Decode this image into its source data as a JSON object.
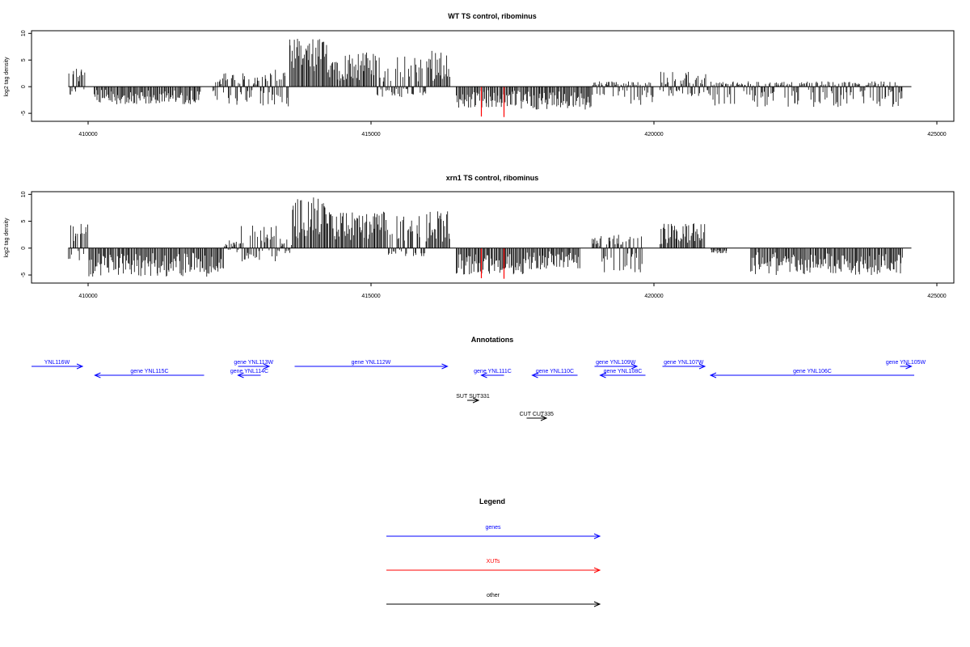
{
  "chart_data": [
    {
      "type": "bar",
      "title": "WT TS control, ribominus",
      "xlabel": "",
      "ylabel": "log2 tag density",
      "xlim": [
        409000,
        425300
      ],
      "ylim": [
        -6.5,
        10.5
      ],
      "xticks": [
        410000,
        415000,
        420000,
        425000
      ],
      "xtick_labels": [
        "410000",
        "415000",
        "420000",
        "425000"
      ],
      "yticks": [
        -5,
        0,
        5,
        10
      ],
      "ytick_labels": [
        "-5",
        "0",
        "5",
        "10"
      ],
      "baseline": {
        "from": 409650,
        "to": 424550
      },
      "bar_color": "#000000",
      "highlight_color": "#ff0000",
      "highlight_bars": [
        {
          "x": 416950,
          "y": -5.6
        },
        {
          "x": 417350,
          "y": -5.7
        }
      ],
      "series": [
        {
          "name": "",
          "x_range": [
            409650,
            409950
          ],
          "value_range": [
            -2,
            3.6
          ]
        },
        {
          "name": "",
          "x_range": [
            410100,
            412000
          ],
          "value_range": [
            -3.3,
            0
          ]
        },
        {
          "name": "",
          "x_range": [
            412200,
            413050
          ],
          "value_range": [
            -3.5,
            2.6
          ]
        },
        {
          "name": "",
          "x_range": [
            413050,
            413550
          ],
          "value_range": [
            -3.8,
            3.5
          ]
        },
        {
          "name": "",
          "x_range": [
            413550,
            414300
          ],
          "value_range": [
            0,
            9.1
          ]
        },
        {
          "name": "",
          "x_range": [
            414300,
            415100
          ],
          "value_range": [
            0,
            6.5
          ]
        },
        {
          "name": "",
          "x_range": [
            415100,
            416000
          ],
          "value_range": [
            -2,
            5.8
          ]
        },
        {
          "name": "",
          "x_range": [
            416000,
            416400
          ],
          "value_range": [
            0,
            7.2
          ]
        },
        {
          "name": "",
          "x_range": [
            416500,
            417600
          ],
          "value_range": [
            -4,
            0
          ]
        },
        {
          "name": "",
          "x_range": [
            417600,
            418900
          ],
          "value_range": [
            -4.3,
            0
          ]
        },
        {
          "name": "",
          "x_range": [
            418900,
            420000
          ],
          "value_range": [
            -3.5,
            1
          ]
        },
        {
          "name": "",
          "x_range": [
            420100,
            421000
          ],
          "value_range": [
            -2,
            2.9
          ]
        },
        {
          "name": "",
          "x_range": [
            421000,
            424400
          ],
          "value_range": [
            -3.8,
            1
          ]
        }
      ]
    },
    {
      "type": "bar",
      "title": "xrn1 TS control, ribominus",
      "xlabel": "",
      "ylabel": "log2 tag density",
      "xlim": [
        409000,
        425300
      ],
      "ylim": [
        -6.5,
        10.5
      ],
      "xticks": [
        410000,
        415000,
        420000,
        425000
      ],
      "xtick_labels": [
        "410000",
        "415000",
        "420000",
        "425000"
      ],
      "yticks": [
        -5,
        0,
        5,
        10
      ],
      "ytick_labels": [
        "-5",
        "0",
        "5",
        "10"
      ],
      "baseline": {
        "from": 409650,
        "to": 424550
      },
      "bar_color": "#000000",
      "highlight_color": "#ff0000",
      "highlight_bars": [
        {
          "x": 416950,
          "y": -5.6
        },
        {
          "x": 417350,
          "y": -5.7
        }
      ],
      "series": [
        {
          "name": "",
          "x_range": [
            409650,
            410000
          ],
          "value_range": [
            -2.5,
            4.6
          ]
        },
        {
          "name": "",
          "x_range": [
            410000,
            412400
          ],
          "value_range": [
            -5.3,
            0
          ]
        },
        {
          "name": "",
          "x_range": [
            412400,
            412700
          ],
          "value_range": [
            -2,
            1.5
          ]
        },
        {
          "name": "",
          "x_range": [
            412700,
            413350
          ],
          "value_range": [
            -2.5,
            4.2
          ]
        },
        {
          "name": "",
          "x_range": [
            413350,
            413600
          ],
          "value_range": [
            -1,
            2.2
          ]
        },
        {
          "name": "",
          "x_range": [
            413600,
            414200
          ],
          "value_range": [
            0,
            9.5
          ]
        },
        {
          "name": "",
          "x_range": [
            414200,
            415300
          ],
          "value_range": [
            0,
            6.8
          ]
        },
        {
          "name": "",
          "x_range": [
            415300,
            416000
          ],
          "value_range": [
            -1.5,
            6.3
          ]
        },
        {
          "name": "",
          "x_range": [
            416000,
            416400
          ],
          "value_range": [
            0,
            7.5
          ]
        },
        {
          "name": "",
          "x_range": [
            416500,
            417700
          ],
          "value_range": [
            -5,
            0
          ]
        },
        {
          "name": "",
          "x_range": [
            417700,
            418700
          ],
          "value_range": [
            -4,
            0
          ]
        },
        {
          "name": "",
          "x_range": [
            418900,
            419800
          ],
          "value_range": [
            -4.8,
            2.5
          ]
        },
        {
          "name": "",
          "x_range": [
            420100,
            420900
          ],
          "value_range": [
            0,
            4.6
          ]
        },
        {
          "name": "",
          "x_range": [
            421000,
            421300
          ],
          "value_range": [
            -1,
            0
          ]
        },
        {
          "name": "",
          "x_range": [
            421700,
            424400
          ],
          "value_range": [
            -5,
            0
          ]
        }
      ]
    }
  ],
  "annotations": {
    "title": "Annotations",
    "xlim": [
      409000,
      425300
    ],
    "items": [
      {
        "label": "YNL116W",
        "strand": "+",
        "start": 408800,
        "end": 409900,
        "row": 0,
        "color": "#0000ff"
      },
      {
        "label": "gene YNL115C",
        "strand": "-",
        "start": 410120,
        "end": 412050,
        "row": 1,
        "color": "#0000ff"
      },
      {
        "label": "gene YNL113W",
        "strand": "+",
        "start": 412650,
        "end": 413200,
        "row": 0,
        "color": "#0000ff"
      },
      {
        "label": "gene YNL114C",
        "strand": "-",
        "start": 412650,
        "end": 413050,
        "row": 1,
        "color": "#0000ff"
      },
      {
        "label": "gene YNL112W",
        "strand": "+",
        "start": 413650,
        "end": 416350,
        "row": 0,
        "color": "#0000ff"
      },
      {
        "label": "gene YNL111C",
        "strand": "-",
        "start": 416950,
        "end": 417350,
        "row": 1,
        "color": "#0000ff"
      },
      {
        "label": "gene YNL110C",
        "strand": "-",
        "start": 417850,
        "end": 418650,
        "row": 1,
        "color": "#0000ff"
      },
      {
        "label": "gene YNL109W",
        "strand": "+",
        "start": 418950,
        "end": 419700,
        "row": 0,
        "color": "#0000ff"
      },
      {
        "label": "gene YNL108C",
        "strand": "-",
        "start": 419050,
        "end": 419850,
        "row": 1,
        "color": "#0000ff"
      },
      {
        "label": "gene YNL107W",
        "strand": "+",
        "start": 420150,
        "end": 420900,
        "row": 0,
        "color": "#0000ff"
      },
      {
        "label": "gene YNL106C",
        "strand": "-",
        "start": 421000,
        "end": 424600,
        "row": 1,
        "color": "#0000ff"
      },
      {
        "label": "gene YNL105W",
        "strand": "+",
        "start": 424350,
        "end": 424550,
        "row": 0,
        "color": "#0000ff"
      },
      {
        "label": "SUT SUT331",
        "strand": "+",
        "start": 416700,
        "end": 416900,
        "row": 2,
        "color": "#000000"
      },
      {
        "label": "CUT CUT335",
        "strand": "+",
        "start": 417750,
        "end": 418100,
        "row": 3,
        "color": "#000000"
      }
    ]
  },
  "legend": {
    "title": "Legend",
    "items": [
      {
        "label": "genes",
        "color": "#0000ff"
      },
      {
        "label": "XUTs",
        "color": "#ff0000"
      },
      {
        "label": "other",
        "color": "#000000"
      }
    ]
  }
}
